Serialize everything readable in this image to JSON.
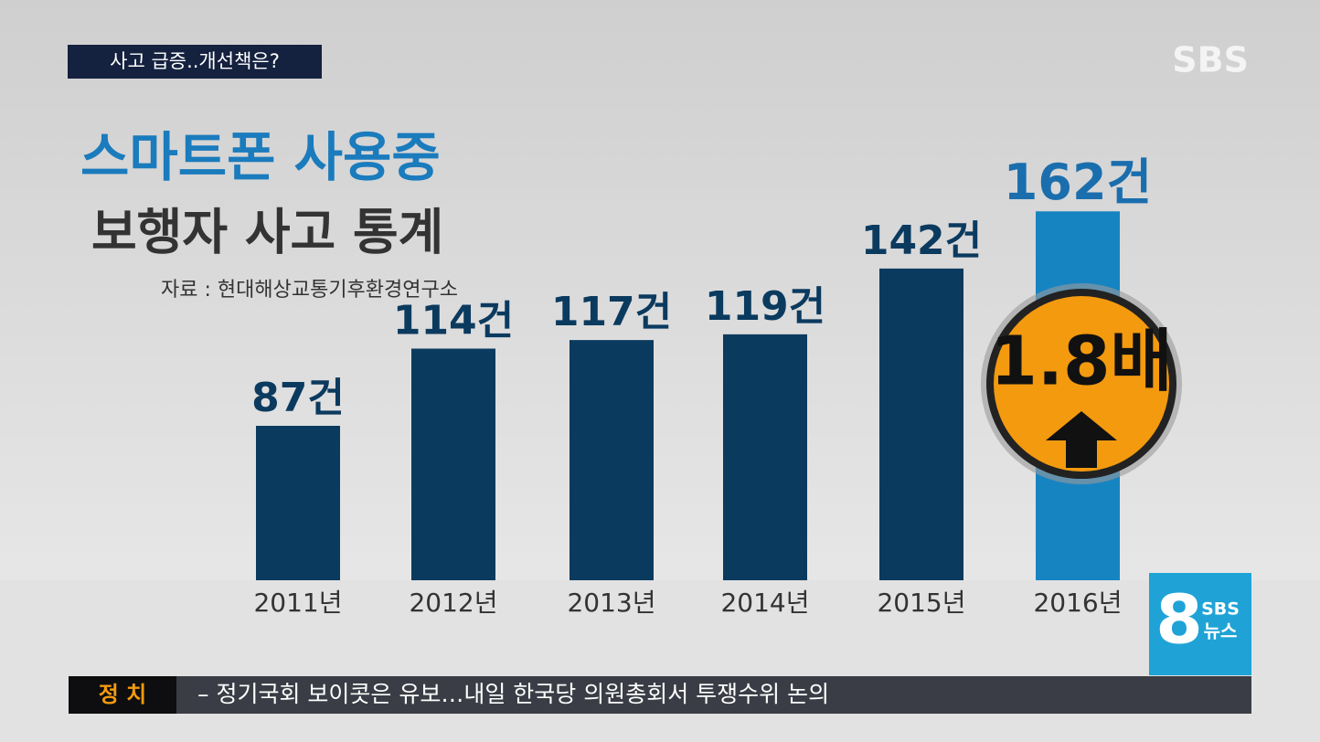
{
  "header": {
    "tag": "사고 급증..개선책은?",
    "logo": "SBS"
  },
  "chart_data": {
    "type": "bar",
    "title": "스마트폰 사용중",
    "subtitle": "보행자 사고 통계",
    "source": "자료 : 현대해상교통기후환경연구소",
    "categories": [
      "2011년",
      "2012년",
      "2013년",
      "2014년",
      "2015년",
      "2016년"
    ],
    "values": [
      87,
      114,
      117,
      119,
      142,
      162
    ],
    "value_labels": [
      "87건",
      "114건",
      "117건",
      "119건",
      "142건",
      "162건"
    ],
    "colors": [
      "#0b3a5f",
      "#0b3a5f",
      "#0b3a5f",
      "#0b3a5f",
      "#0b3a5f",
      "#1784c2"
    ],
    "ylim": [
      33,
      172
    ],
    "annotation": "1.8배"
  },
  "news_logo": {
    "number": "8",
    "brand": "SBS",
    "label": "뉴스"
  },
  "ticker": {
    "section": "정 치",
    "text": "– 정기국회 보이콧은 유보…내일 한국당 의원총회서 투쟁수위 논의"
  }
}
